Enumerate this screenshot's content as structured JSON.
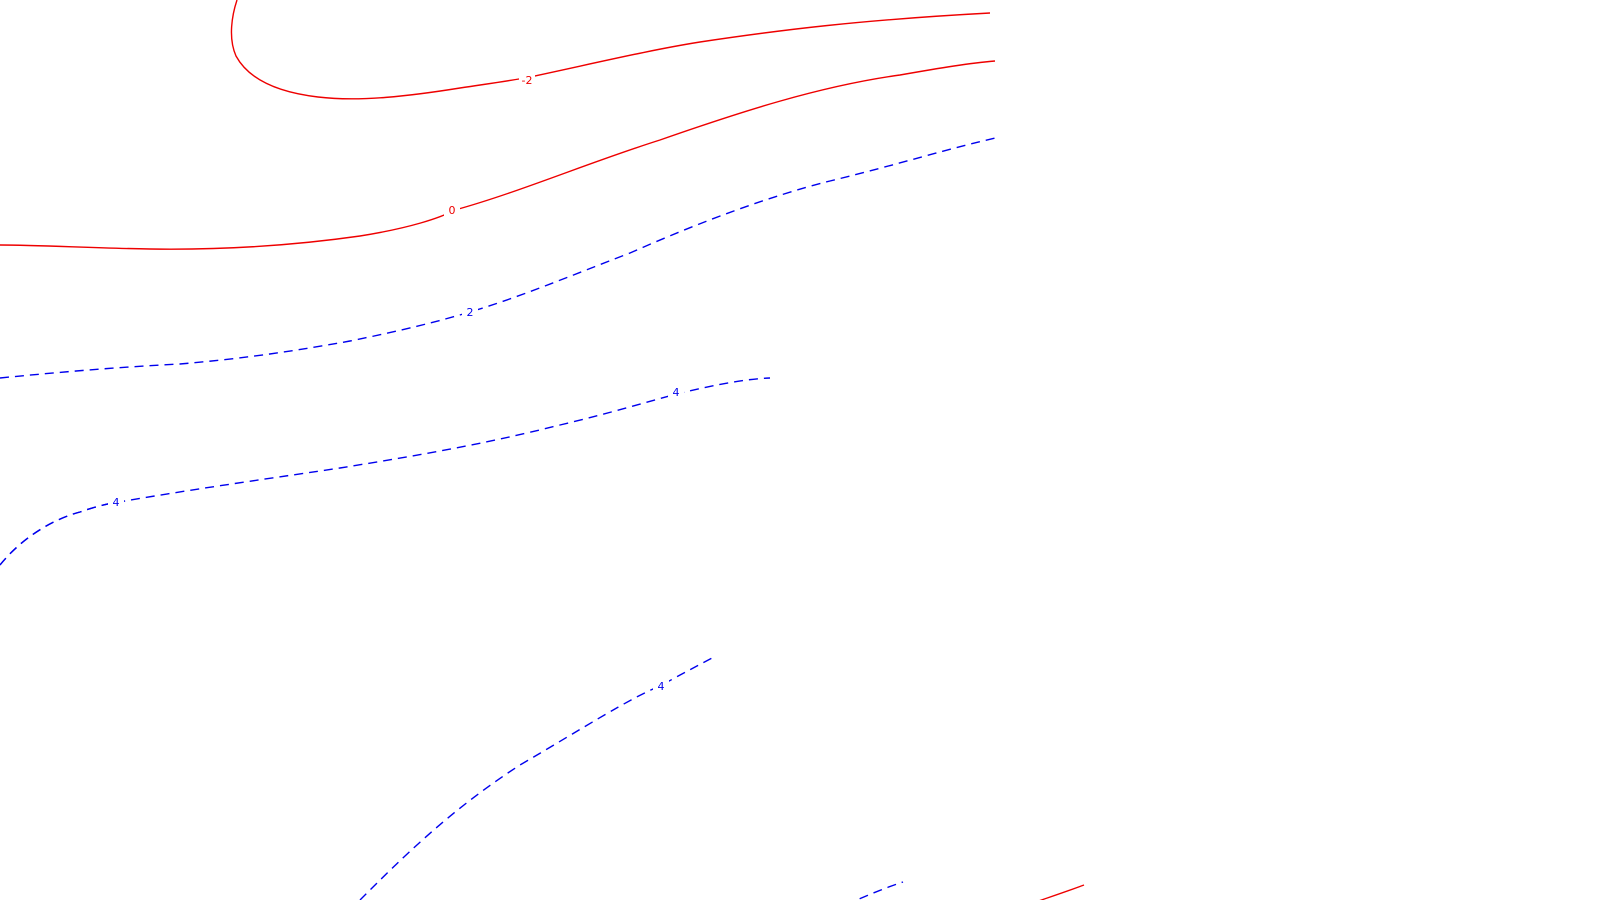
{
  "colors": {
    "positive": "#0000ee",
    "negative": "#ee0000",
    "background": "#ffffff"
  },
  "contours": [
    {
      "id": "neg2-upper",
      "level": -2,
      "sign": "negative",
      "label": "-2"
    },
    {
      "id": "zero-line",
      "level": 0,
      "sign": "negative",
      "label": "0"
    },
    {
      "id": "pos2-line",
      "level": 2,
      "sign": "positive",
      "label": "2"
    },
    {
      "id": "pos4-middle",
      "level": 4,
      "sign": "positive",
      "label": "4"
    },
    {
      "id": "pos4-left",
      "level": 4,
      "sign": "positive",
      "label": "4"
    },
    {
      "id": "pos4-lower",
      "level": 4,
      "sign": "positive",
      "label": "4"
    },
    {
      "id": "pos-fragment-bottom",
      "level": null,
      "sign": "positive",
      "label": ""
    },
    {
      "id": "neg-fragment-bottom",
      "level": null,
      "sign": "negative",
      "label": ""
    }
  ]
}
